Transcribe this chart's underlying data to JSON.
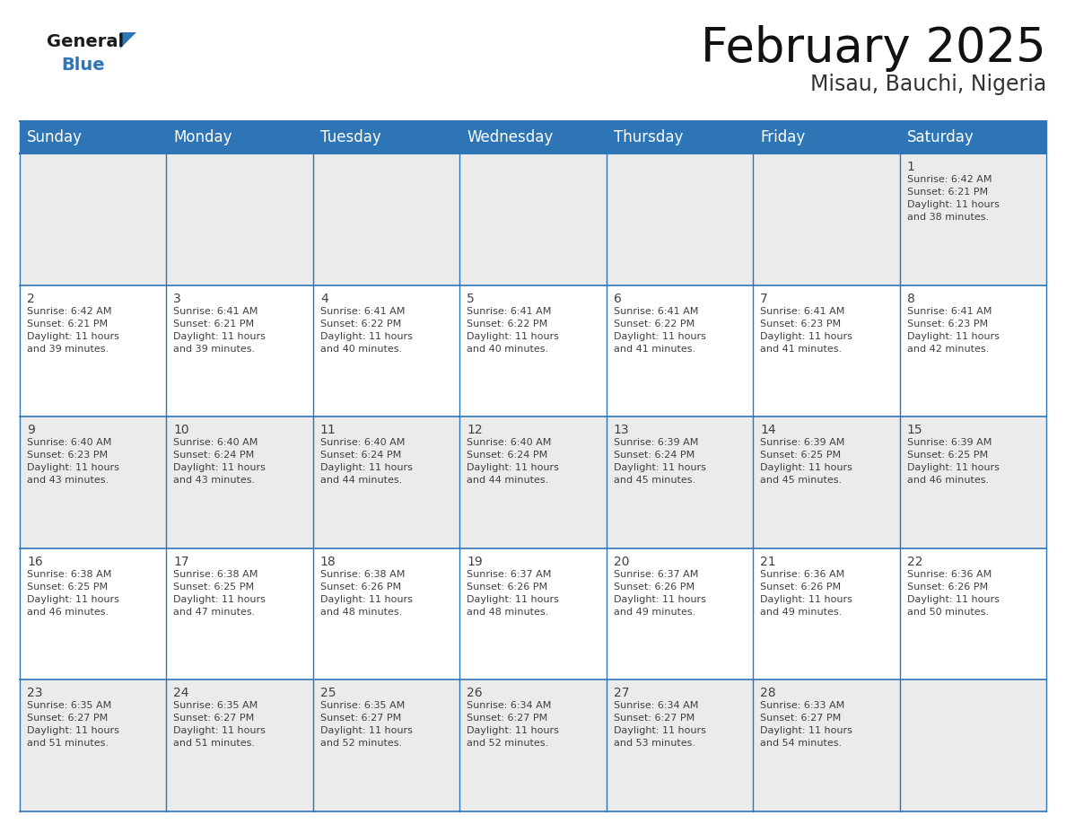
{
  "title": "February 2025",
  "subtitle": "Misau, Bauchi, Nigeria",
  "header_bg_color": "#2E75B6",
  "header_text_color": "#FFFFFF",
  "cell_bg_white": "#FFFFFF",
  "cell_bg_gray": "#EBEBEB",
  "day_names": [
    "Sunday",
    "Monday",
    "Tuesday",
    "Wednesday",
    "Thursday",
    "Friday",
    "Saturday"
  ],
  "title_fontsize": 38,
  "subtitle_fontsize": 17,
  "header_fontsize": 12,
  "day_num_fontsize": 10,
  "cell_text_fontsize": 8,
  "grid_line_color": "#2E75B6",
  "text_color": "#404040",
  "calendar_data": [
    [
      null,
      null,
      null,
      null,
      null,
      null,
      {
        "day": 1,
        "sunrise": "6:42 AM",
        "sunset": "6:21 PM",
        "daylight": "11 hours",
        "daylight2": "and 38 minutes."
      }
    ],
    [
      {
        "day": 2,
        "sunrise": "6:42 AM",
        "sunset": "6:21 PM",
        "daylight": "11 hours",
        "daylight2": "and 39 minutes."
      },
      {
        "day": 3,
        "sunrise": "6:41 AM",
        "sunset": "6:21 PM",
        "daylight": "11 hours",
        "daylight2": "and 39 minutes."
      },
      {
        "day": 4,
        "sunrise": "6:41 AM",
        "sunset": "6:22 PM",
        "daylight": "11 hours",
        "daylight2": "and 40 minutes."
      },
      {
        "day": 5,
        "sunrise": "6:41 AM",
        "sunset": "6:22 PM",
        "daylight": "11 hours",
        "daylight2": "and 40 minutes."
      },
      {
        "day": 6,
        "sunrise": "6:41 AM",
        "sunset": "6:22 PM",
        "daylight": "11 hours",
        "daylight2": "and 41 minutes."
      },
      {
        "day": 7,
        "sunrise": "6:41 AM",
        "sunset": "6:23 PM",
        "daylight": "11 hours",
        "daylight2": "and 41 minutes."
      },
      {
        "day": 8,
        "sunrise": "6:41 AM",
        "sunset": "6:23 PM",
        "daylight": "11 hours",
        "daylight2": "and 42 minutes."
      }
    ],
    [
      {
        "day": 9,
        "sunrise": "6:40 AM",
        "sunset": "6:23 PM",
        "daylight": "11 hours",
        "daylight2": "and 43 minutes."
      },
      {
        "day": 10,
        "sunrise": "6:40 AM",
        "sunset": "6:24 PM",
        "daylight": "11 hours",
        "daylight2": "and 43 minutes."
      },
      {
        "day": 11,
        "sunrise": "6:40 AM",
        "sunset": "6:24 PM",
        "daylight": "11 hours",
        "daylight2": "and 44 minutes."
      },
      {
        "day": 12,
        "sunrise": "6:40 AM",
        "sunset": "6:24 PM",
        "daylight": "11 hours",
        "daylight2": "and 44 minutes."
      },
      {
        "day": 13,
        "sunrise": "6:39 AM",
        "sunset": "6:24 PM",
        "daylight": "11 hours",
        "daylight2": "and 45 minutes."
      },
      {
        "day": 14,
        "sunrise": "6:39 AM",
        "sunset": "6:25 PM",
        "daylight": "11 hours",
        "daylight2": "and 45 minutes."
      },
      {
        "day": 15,
        "sunrise": "6:39 AM",
        "sunset": "6:25 PM",
        "daylight": "11 hours",
        "daylight2": "and 46 minutes."
      }
    ],
    [
      {
        "day": 16,
        "sunrise": "6:38 AM",
        "sunset": "6:25 PM",
        "daylight": "11 hours",
        "daylight2": "and 46 minutes."
      },
      {
        "day": 17,
        "sunrise": "6:38 AM",
        "sunset": "6:25 PM",
        "daylight": "11 hours",
        "daylight2": "and 47 minutes."
      },
      {
        "day": 18,
        "sunrise": "6:38 AM",
        "sunset": "6:26 PM",
        "daylight": "11 hours",
        "daylight2": "and 48 minutes."
      },
      {
        "day": 19,
        "sunrise": "6:37 AM",
        "sunset": "6:26 PM",
        "daylight": "11 hours",
        "daylight2": "and 48 minutes."
      },
      {
        "day": 20,
        "sunrise": "6:37 AM",
        "sunset": "6:26 PM",
        "daylight": "11 hours",
        "daylight2": "and 49 minutes."
      },
      {
        "day": 21,
        "sunrise": "6:36 AM",
        "sunset": "6:26 PM",
        "daylight": "11 hours",
        "daylight2": "and 49 minutes."
      },
      {
        "day": 22,
        "sunrise": "6:36 AM",
        "sunset": "6:26 PM",
        "daylight": "11 hours",
        "daylight2": "and 50 minutes."
      }
    ],
    [
      {
        "day": 23,
        "sunrise": "6:35 AM",
        "sunset": "6:27 PM",
        "daylight": "11 hours",
        "daylight2": "and 51 minutes."
      },
      {
        "day": 24,
        "sunrise": "6:35 AM",
        "sunset": "6:27 PM",
        "daylight": "11 hours",
        "daylight2": "and 51 minutes."
      },
      {
        "day": 25,
        "sunrise": "6:35 AM",
        "sunset": "6:27 PM",
        "daylight": "11 hours",
        "daylight2": "and 52 minutes."
      },
      {
        "day": 26,
        "sunrise": "6:34 AM",
        "sunset": "6:27 PM",
        "daylight": "11 hours",
        "daylight2": "and 52 minutes."
      },
      {
        "day": 27,
        "sunrise": "6:34 AM",
        "sunset": "6:27 PM",
        "daylight": "11 hours",
        "daylight2": "and 53 minutes."
      },
      {
        "day": 28,
        "sunrise": "6:33 AM",
        "sunset": "6:27 PM",
        "daylight": "11 hours",
        "daylight2": "and 54 minutes."
      },
      null
    ]
  ],
  "logo_color_general": "#1A1A1A",
  "logo_color_blue": "#2E75B6"
}
